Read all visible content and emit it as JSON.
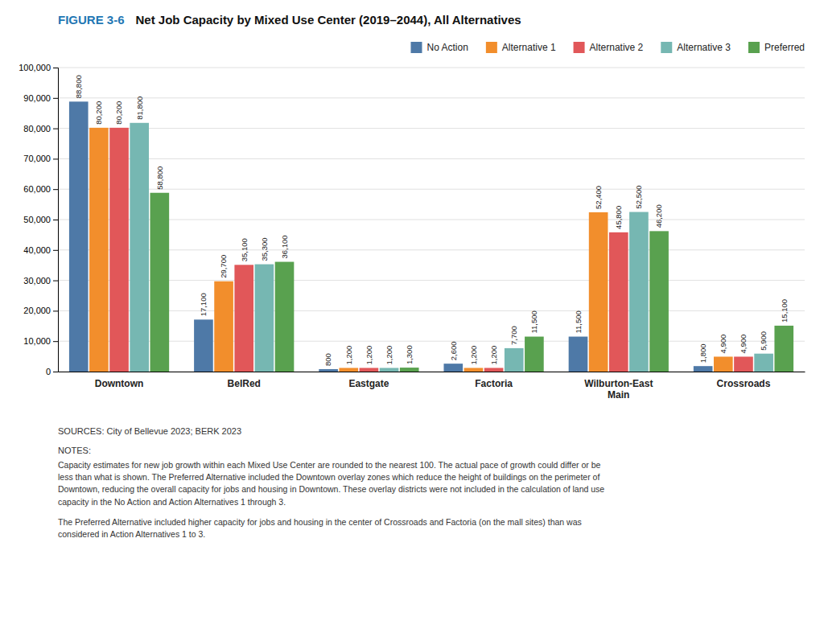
{
  "chart_data": {
    "type": "bar",
    "title": "Net Job Capacity by Mixed Use Center (2019–2044), All Alternatives",
    "categories": [
      "Downtown",
      "BelRed",
      "Eastgate",
      "Factoria",
      "Wilburton-East\nMain",
      "Crossroads"
    ],
    "series": [
      {
        "name": "No Action",
        "values": [
          88800,
          17100,
          800,
          2600,
          11500,
          1800
        ],
        "value_labels": [
          "88,800",
          "17,100",
          "800",
          "2,600",
          "11,500",
          "1,800"
        ]
      },
      {
        "name": "Alternative 1",
        "values": [
          80200,
          29700,
          1200,
          1200,
          52400,
          4900
        ],
        "value_labels": [
          "80,200",
          "29,700",
          "1,200",
          "1,200",
          "52,400",
          "4,900"
        ]
      },
      {
        "name": "Alternative 2",
        "values": [
          80200,
          35100,
          1200,
          1200,
          45800,
          4900
        ],
        "value_labels": [
          "80,200",
          "35,100",
          "1,200",
          "1,200",
          "45,800",
          "4,900"
        ]
      },
      {
        "name": "Alternative 3",
        "values": [
          81800,
          35300,
          1200,
          7700,
          52500,
          5900
        ],
        "value_labels": [
          "81,800",
          "35,300",
          "1,200",
          "7,700",
          "52,500",
          "5,900"
        ]
      },
      {
        "name": "Preferred",
        "values": [
          58800,
          36100,
          1300,
          11500,
          46200,
          15100
        ],
        "value_labels": [
          "58,800",
          "36,100",
          "1,300",
          "11,500",
          "46,200",
          "15,100"
        ]
      }
    ],
    "ylim": [
      0,
      100000
    ],
    "yticks": [
      0,
      {
        "value": 10000,
        "label": "10,000"
      },
      {
        "value": 20000,
        "label": "20,000"
      },
      {
        "value": 30000,
        "label": "30,000"
      },
      {
        "value": 40000,
        "label": "40,000"
      },
      {
        "value": 50000,
        "label": "50,000"
      },
      {
        "value": 60000,
        "label": "60,000"
      },
      {
        "value": 70000,
        "label": "70,000"
      },
      {
        "value": 80000,
        "label": "80,000"
      },
      {
        "value": 90000,
        "label": "90,000"
      },
      {
        "value": 100000,
        "label": "100,000"
      }
    ],
    "grid": true,
    "legend": "upper right",
    "data_labels": true,
    "annotations": [
      "SOURCES:   City of Bellevue 2023; BERK 2023",
      "NOTES:",
      "Capacity estimates for new job growth within each Mixed Use Center are rounded to the nearest 100. The actual pace of growth could differ or be\nless than what is shown. The Preferred Alternative included the Downtown overlay zones which reduce the height of buildings on the perimeter of\nDowntown, reducing the overall capacity for jobs and housing in Downtown. These overlay districts were not included in the calculation of land use\ncapacity in the No Action and Action Alternatives 1 through 3.",
      "The Preferred Alternative included higher capacity for jobs and housing in the center of Crossroads and Factoria (on the mall sites) than was\nconsidered in Action Alternatives 1 to 3.",
      "FIGURE 3-6"
    ]
  }
}
